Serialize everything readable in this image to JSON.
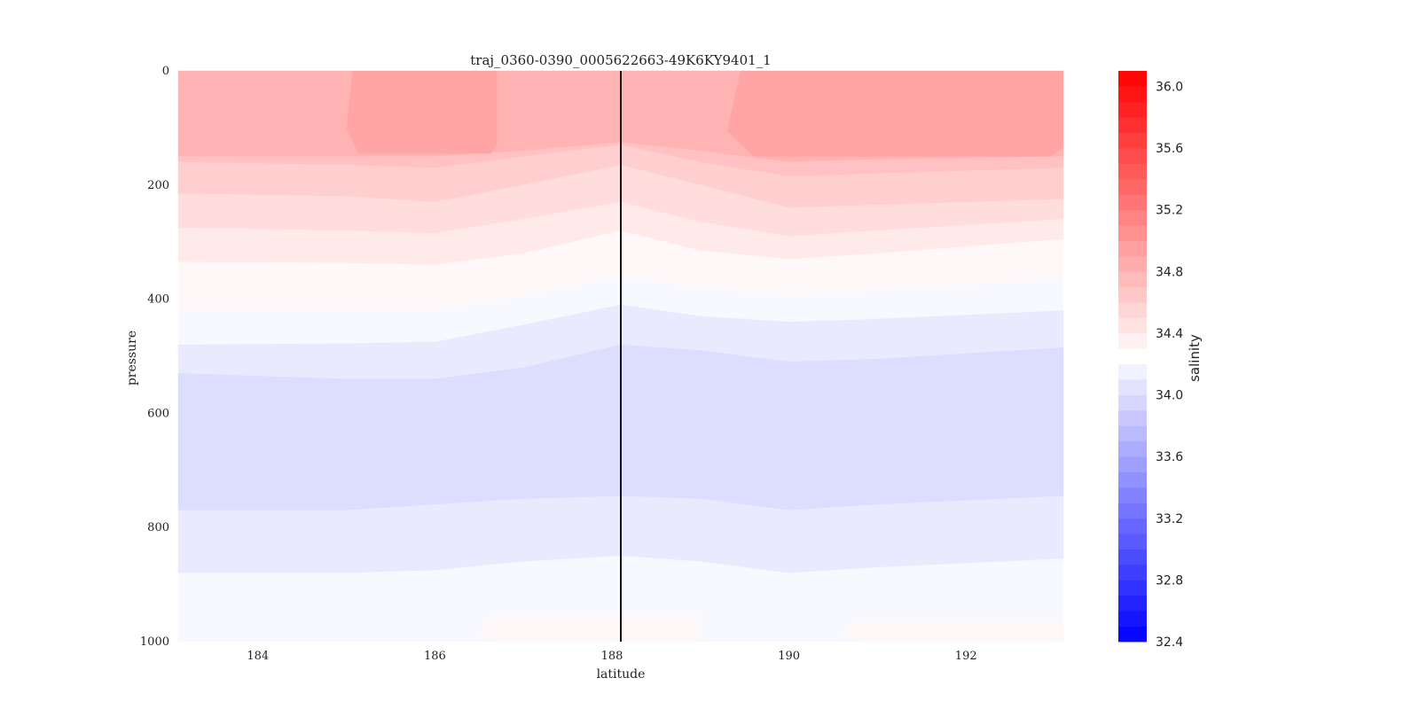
{
  "chart_data": {
    "type": "heatmap",
    "subtype": "filled-contour-section",
    "title": "traj_0360-0390_0005622663-49K6KY9401_1",
    "xlabel": "latitude",
    "ylabel": "pressure",
    "xlim": [
      183.1,
      193.1
    ],
    "ylim": [
      1000,
      0
    ],
    "y_inverted": true,
    "x_ticks": [
      184,
      186,
      188,
      190,
      192
    ],
    "y_ticks": [
      0,
      200,
      400,
      600,
      800,
      1000
    ],
    "grid": false,
    "vertical_marker_x": 188.1,
    "colorbar": {
      "label": "salinity",
      "colormap": "bwr",
      "vmin": 32.4,
      "vmax": 36.1,
      "ticks": [
        32.4,
        32.8,
        33.2,
        33.6,
        34.0,
        34.4,
        34.8,
        35.2,
        35.6,
        36.0
      ],
      "gap_range": [
        34.2,
        34.3
      ]
    },
    "contour_x": [
      183.1,
      185.0,
      186.0,
      187.0,
      188.1,
      189.0,
      190.0,
      191.0,
      193.1
    ],
    "contour_boundaries": [
      {
        "between": [
          34.9,
          34.8
        ],
        "pressure": [
          0,
          0,
          0,
          0,
          0,
          0,
          0,
          0,
          0
        ]
      },
      {
        "between": [
          34.8,
          34.7
        ],
        "pressure": [
          150,
          150,
          150,
          140,
          125,
          140,
          160,
          155,
          150
        ]
      },
      {
        "between": [
          34.7,
          34.6
        ],
        "pressure": [
          160,
          165,
          170,
          150,
          130,
          160,
          185,
          180,
          170
        ]
      },
      {
        "between": [
          34.6,
          34.5
        ],
        "pressure": [
          215,
          220,
          230,
          200,
          165,
          200,
          240,
          235,
          225
        ]
      },
      {
        "between": [
          34.5,
          34.4
        ],
        "pressure": [
          275,
          280,
          285,
          260,
          230,
          265,
          290,
          280,
          260
        ]
      },
      {
        "between": [
          34.4,
          34.3
        ],
        "pressure": [
          335,
          337,
          340,
          320,
          280,
          315,
          330,
          320,
          295
        ]
      },
      {
        "between": [
          34.3,
          34.2
        ],
        "pressure": [
          420,
          420,
          420,
          395,
          360,
          380,
          395,
          385,
          365
        ]
      },
      {
        "between": [
          34.2,
          34.1
        ],
        "pressure": [
          480,
          478,
          475,
          445,
          410,
          430,
          440,
          435,
          420
        ]
      },
      {
        "between": [
          34.1,
          34.0
        ],
        "pressure": [
          530,
          540,
          540,
          520,
          480,
          490,
          510,
          505,
          485
        ]
      },
      {
        "between": [
          34.0,
          34.1
        ],
        "pressure": [
          770,
          770,
          760,
          750,
          745,
          750,
          770,
          760,
          745
        ]
      },
      {
        "between": [
          34.1,
          34.2
        ],
        "pressure": [
          880,
          880,
          875,
          860,
          850,
          860,
          880,
          870,
          855
        ]
      },
      {
        "between": [
          34.2,
          34.3
        ],
        "pressure": [
          1000,
          1000,
          1000,
          1000,
          1000,
          1000,
          1000,
          1000,
          1000
        ]
      }
    ],
    "saltier_core_regions": [
      {
        "value": 34.9,
        "x_range": [
          185.0,
          186.7
        ],
        "pressure_range": [
          0,
          145
        ]
      },
      {
        "value": 34.9,
        "x_range": [
          189.3,
          193.1
        ],
        "pressure_range": [
          0,
          150
        ]
      },
      {
        "value": 34.3,
        "x_range": [
          186.5,
          189.0
        ],
        "pressure_range": [
          955,
          1000
        ]
      },
      {
        "value": 34.3,
        "x_range": [
          190.6,
          193.1
        ],
        "pressure_range": [
          965,
          1000
        ]
      }
    ]
  }
}
